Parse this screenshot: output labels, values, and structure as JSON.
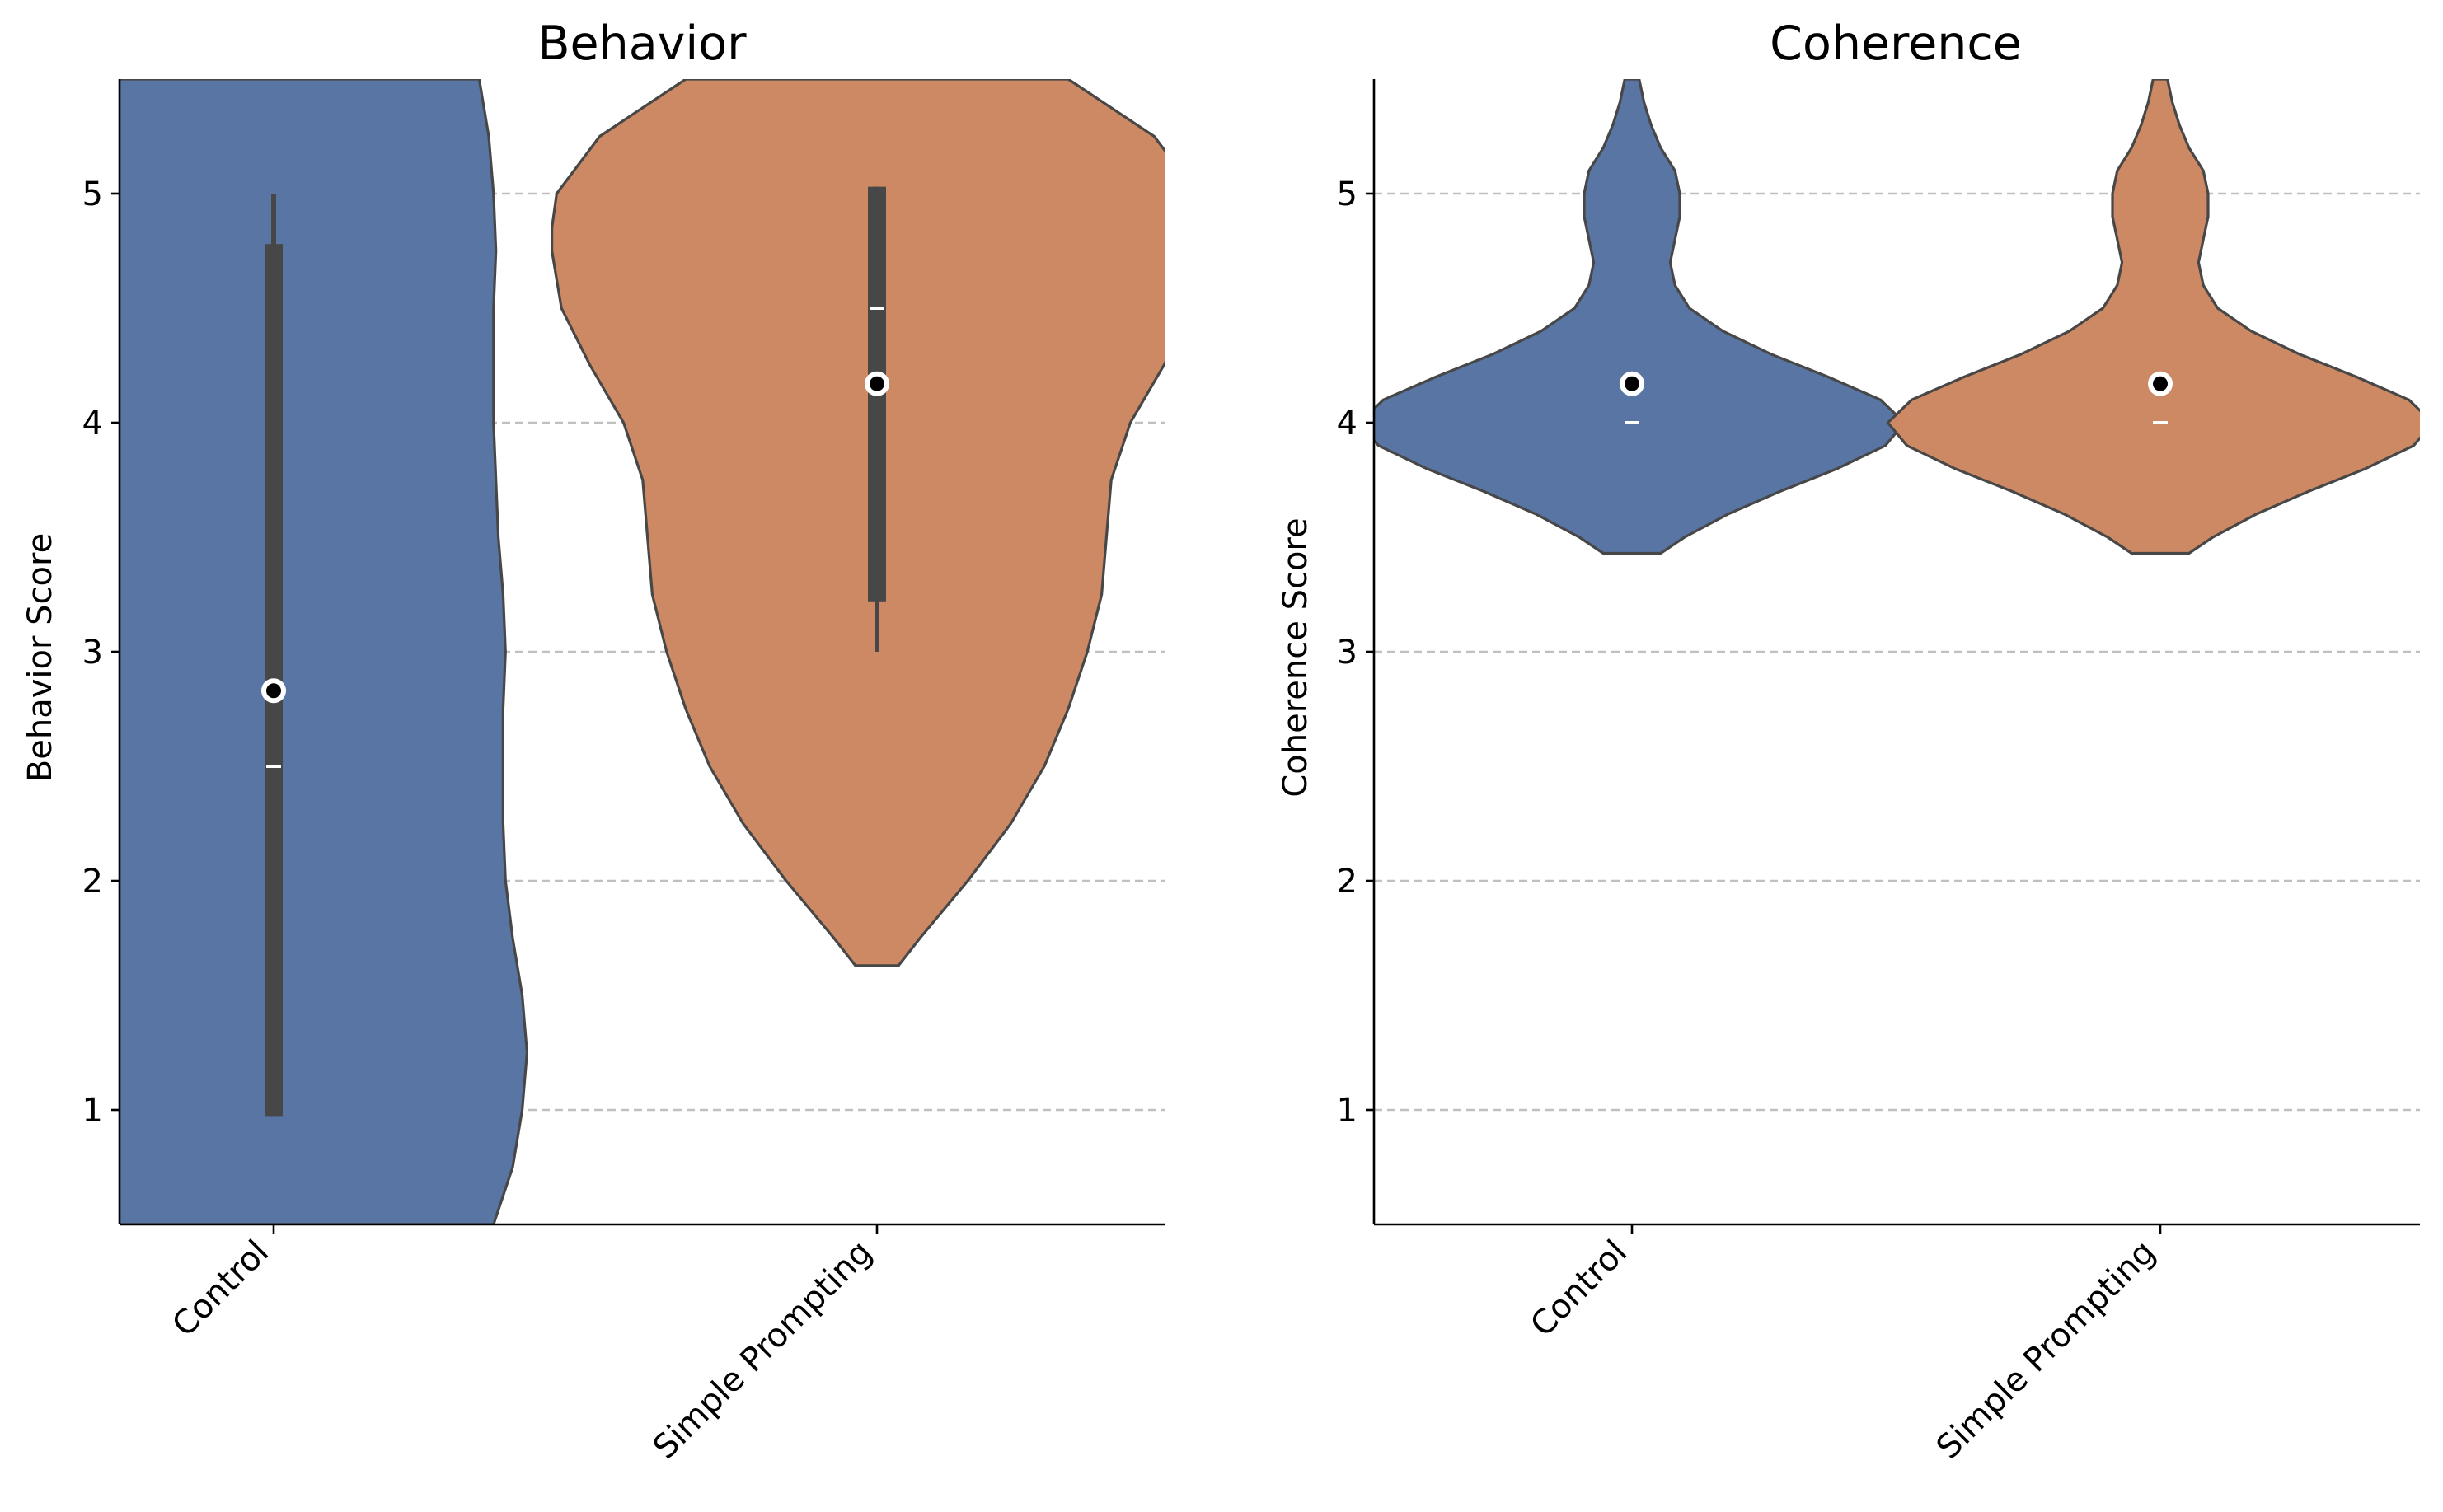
{
  "chart_data": [
    {
      "type": "violin",
      "title": "Behavior",
      "ylabel": "Behavior Score",
      "xlabel": "",
      "ylim": [
        0.5,
        5.5
      ],
      "yticks": [
        1,
        2,
        3,
        4,
        5
      ],
      "grid": "y dashed",
      "categories": [
        "Control",
        "Simple Prompting"
      ],
      "colors": [
        "#5875a4",
        "#cc8963"
      ],
      "series": [
        {
          "category": "Control",
          "color": "#5875a4",
          "iqr": [
            0.97,
            4.78
          ],
          "whisker": [
            0.97,
            5.0
          ],
          "median": 2.5,
          "mean": 2.83,
          "density": [
            [
              0.5,
              0.46
            ],
            [
              0.75,
              0.5
            ],
            [
              1.0,
              0.52
            ],
            [
              1.25,
              0.53
            ],
            [
              1.5,
              0.52
            ],
            [
              1.75,
              0.5
            ],
            [
              2.0,
              0.485
            ],
            [
              2.25,
              0.48
            ],
            [
              2.5,
              0.48
            ],
            [
              2.75,
              0.48
            ],
            [
              3.0,
              0.485
            ],
            [
              3.25,
              0.48
            ],
            [
              3.5,
              0.47
            ],
            [
              3.75,
              0.465
            ],
            [
              4.0,
              0.46
            ],
            [
              4.25,
              0.46
            ],
            [
              4.5,
              0.46
            ],
            [
              4.75,
              0.465
            ],
            [
              5.0,
              0.46
            ],
            [
              5.25,
              0.45
            ],
            [
              5.5,
              0.43
            ]
          ]
        },
        {
          "category": "Simple Prompting",
          "color": "#cc8963",
          "iqr": [
            3.22,
            5.03
          ],
          "whisker": [
            3.0,
            5.03
          ],
          "median": 4.5,
          "mean": 4.17,
          "density": [
            [
              1.63,
              0.045
            ],
            [
              1.75,
              0.09
            ],
            [
              2.0,
              0.19
            ],
            [
              2.25,
              0.28
            ],
            [
              2.5,
              0.35
            ],
            [
              2.75,
              0.4
            ],
            [
              3.0,
              0.44
            ],
            [
              3.25,
              0.47
            ],
            [
              3.5,
              0.48
            ],
            [
              3.75,
              0.49
            ],
            [
              4.0,
              0.53
            ],
            [
              4.25,
              0.6
            ],
            [
              4.5,
              0.66
            ],
            [
              4.75,
              0.68
            ],
            [
              4.85,
              0.68
            ],
            [
              5.0,
              0.67
            ],
            [
              5.25,
              0.58
            ],
            [
              5.5,
              0.4
            ]
          ]
        }
      ]
    },
    {
      "type": "violin",
      "title": "Coherence",
      "ylabel": "Coherence Score",
      "xlabel": "",
      "ylim": [
        0.5,
        5.5
      ],
      "yticks": [
        1,
        2,
        3,
        4,
        5
      ],
      "grid": "y dashed",
      "categories": [
        "Control",
        "Simple Prompting"
      ],
      "colors": [
        "#5875a4",
        "#cc8963"
      ],
      "series": [
        {
          "category": "Control",
          "color": "#5875a4",
          "iqr": [
            4.0,
            4.0
          ],
          "whisker": [
            4.0,
            4.0
          ],
          "median": 4.0,
          "mean": 4.17,
          "density": [
            [
              3.43,
              0.06
            ],
            [
              3.5,
              0.11
            ],
            [
              3.6,
              0.2
            ],
            [
              3.7,
              0.31
            ],
            [
              3.8,
              0.43
            ],
            [
              3.9,
              0.53
            ],
            [
              4.0,
              0.57
            ],
            [
              4.1,
              0.52
            ],
            [
              4.2,
              0.41
            ],
            [
              4.3,
              0.29
            ],
            [
              4.4,
              0.19
            ],
            [
              4.5,
              0.12
            ],
            [
              4.6,
              0.09
            ],
            [
              4.7,
              0.08
            ],
            [
              4.8,
              0.09
            ],
            [
              4.9,
              0.1
            ],
            [
              5.0,
              0.1
            ],
            [
              5.1,
              0.09
            ],
            [
              5.2,
              0.06
            ],
            [
              5.3,
              0.04
            ],
            [
              5.4,
              0.025
            ],
            [
              5.5,
              0.015
            ]
          ]
        },
        {
          "category": "Simple Prompting",
          "color": "#cc8963",
          "iqr": [
            4.0,
            4.0
          ],
          "whisker": [
            4.0,
            4.0
          ],
          "median": 4.0,
          "mean": 4.17,
          "density": [
            [
              3.43,
              0.06
            ],
            [
              3.5,
              0.11
            ],
            [
              3.6,
              0.2
            ],
            [
              3.7,
              0.31
            ],
            [
              3.8,
              0.43
            ],
            [
              3.9,
              0.53
            ],
            [
              4.0,
              0.57
            ],
            [
              4.1,
              0.52
            ],
            [
              4.2,
              0.41
            ],
            [
              4.3,
              0.29
            ],
            [
              4.4,
              0.19
            ],
            [
              4.5,
              0.12
            ],
            [
              4.6,
              0.09
            ],
            [
              4.7,
              0.08
            ],
            [
              4.8,
              0.09
            ],
            [
              4.9,
              0.1
            ],
            [
              5.0,
              0.1
            ],
            [
              5.1,
              0.09
            ],
            [
              5.2,
              0.06
            ],
            [
              5.3,
              0.04
            ],
            [
              5.4,
              0.025
            ],
            [
              5.5,
              0.015
            ]
          ]
        }
      ]
    }
  ]
}
